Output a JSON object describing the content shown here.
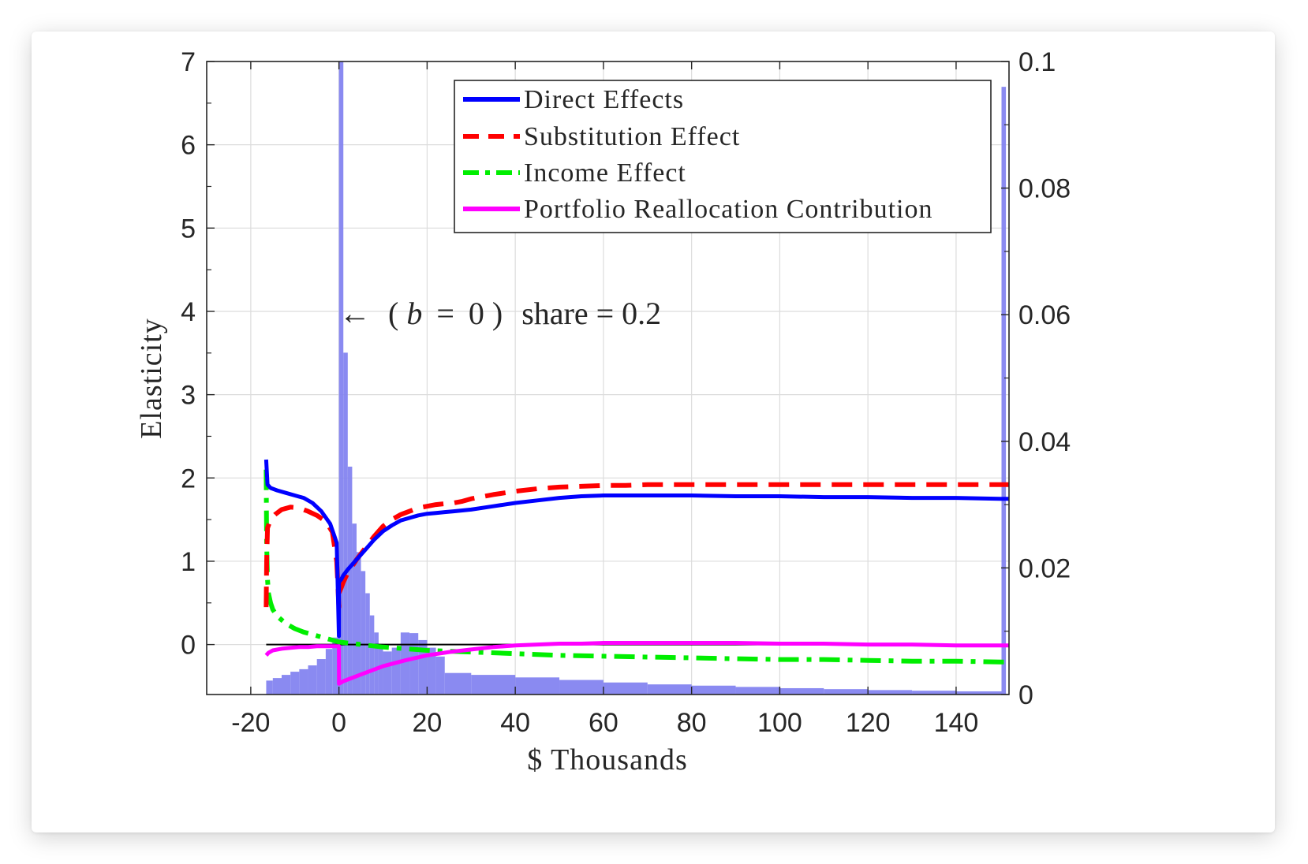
{
  "chart_data": {
    "type": "line",
    "xlabel": "$ Thousands",
    "ylabel": "Elasticity",
    "xlim": [
      -30,
      152
    ],
    "ylim": [
      -0.6,
      7
    ],
    "y2lim": [
      0,
      0.1
    ],
    "xticks": [
      -20,
      0,
      20,
      40,
      60,
      80,
      100,
      120,
      140
    ],
    "xtick_labels": [
      "-20",
      "0",
      "20",
      "40",
      "60",
      "80",
      "100",
      "120",
      "140"
    ],
    "yticks": [
      0,
      1,
      2,
      3,
      4,
      5,
      6,
      7
    ],
    "ytick_labels": [
      "0",
      "1",
      "2",
      "3",
      "4",
      "5",
      "6",
      "7"
    ],
    "y2ticks": [
      0,
      0.02,
      0.04,
      0.06,
      0.08,
      0.1
    ],
    "y2tick_labels": [
      "0",
      "0.02",
      "0.04",
      "0.06",
      "0.08",
      "0.1"
    ],
    "grid": true,
    "legend_position": "top-right",
    "annotation": {
      "arrow": "←",
      "open": "(",
      "var": "b",
      "eq": "=",
      "zero": "0",
      "close": ")",
      "rest": "share = 0.2",
      "x": 0,
      "y": 4
    },
    "zero_line": {
      "x": [
        -16.5,
        152
      ],
      "y": 0
    },
    "histogram": {
      "axis": "right",
      "color": "#8080f0",
      "bins": [
        {
          "x0": -16.5,
          "x1": -15,
          "v": 0.0022
        },
        {
          "x0": -15,
          "x1": -13,
          "v": 0.0026
        },
        {
          "x0": -13,
          "x1": -11,
          "v": 0.0031
        },
        {
          "x0": -11,
          "x1": -9,
          "v": 0.0036
        },
        {
          "x0": -9,
          "x1": -7,
          "v": 0.004
        },
        {
          "x0": -7,
          "x1": -5,
          "v": 0.0046
        },
        {
          "x0": -5,
          "x1": -3,
          "v": 0.0056
        },
        {
          "x0": -3,
          "x1": -1.5,
          "v": 0.0072
        },
        {
          "x0": -1.5,
          "x1": 0,
          "v": 0.009
        },
        {
          "x0": 0,
          "x1": 1,
          "v": 0.12
        },
        {
          "x0": 1,
          "x1": 2,
          "v": 0.054
        },
        {
          "x0": 2,
          "x1": 3,
          "v": 0.036
        },
        {
          "x0": 3,
          "x1": 4,
          "v": 0.027
        },
        {
          "x0": 4,
          "x1": 5,
          "v": 0.0225
        },
        {
          "x0": 5,
          "x1": 6,
          "v": 0.0195
        },
        {
          "x0": 6,
          "x1": 7,
          "v": 0.016
        },
        {
          "x0": 7,
          "x1": 8,
          "v": 0.0125
        },
        {
          "x0": 8,
          "x1": 9,
          "v": 0.0098
        },
        {
          "x0": 9,
          "x1": 10,
          "v": 0.008
        },
        {
          "x0": 10,
          "x1": 12,
          "v": 0.0068
        },
        {
          "x0": 12,
          "x1": 14,
          "v": 0.0074
        },
        {
          "x0": 14,
          "x1": 16,
          "v": 0.0098
        },
        {
          "x0": 16,
          "x1": 18,
          "v": 0.0097
        },
        {
          "x0": 18,
          "x1": 20,
          "v": 0.0086
        },
        {
          "x0": 20,
          "x1": 22,
          "v": 0.0074
        },
        {
          "x0": 22,
          "x1": 24,
          "v": 0.006
        },
        {
          "x0": 24,
          "x1": 30,
          "v": 0.0034
        },
        {
          "x0": 30,
          "x1": 40,
          "v": 0.0031
        },
        {
          "x0": 40,
          "x1": 50,
          "v": 0.0027
        },
        {
          "x0": 50,
          "x1": 60,
          "v": 0.0023
        },
        {
          "x0": 60,
          "x1": 70,
          "v": 0.0019
        },
        {
          "x0": 70,
          "x1": 80,
          "v": 0.0016
        },
        {
          "x0": 80,
          "x1": 90,
          "v": 0.0014
        },
        {
          "x0": 90,
          "x1": 100,
          "v": 0.0012
        },
        {
          "x0": 100,
          "x1": 110,
          "v": 0.001
        },
        {
          "x0": 110,
          "x1": 120,
          "v": 0.00085
        },
        {
          "x0": 120,
          "x1": 130,
          "v": 0.0007
        },
        {
          "x0": 130,
          "x1": 140,
          "v": 0.0006
        },
        {
          "x0": 140,
          "x1": 150.3,
          "v": 0.0005
        },
        {
          "x0": 150.3,
          "x1": 151.3,
          "v": 0.096
        }
      ]
    },
    "series": [
      {
        "name": "Direct Effects",
        "color": "#0000ff",
        "dash": "solid",
        "x": [
          -16.5,
          -16.2,
          -15.5,
          -14,
          -12,
          -10,
          -8,
          -6,
          -4,
          -2,
          -1,
          -0.5,
          0,
          0.01,
          0.5,
          1,
          2,
          4,
          6,
          8,
          10,
          12,
          14,
          16,
          18,
          20,
          22,
          24,
          26,
          28,
          30,
          35,
          40,
          45,
          50,
          55,
          60,
          65,
          70,
          80,
          90,
          100,
          110,
          120,
          130,
          140,
          150,
          152
        ],
        "y": [
          2.22,
          1.92,
          1.88,
          1.85,
          1.82,
          1.79,
          1.76,
          1.7,
          1.6,
          1.45,
          1.3,
          1.22,
          0.1,
          0.75,
          0.78,
          0.83,
          0.9,
          1.02,
          1.14,
          1.26,
          1.36,
          1.43,
          1.49,
          1.52,
          1.55,
          1.57,
          1.58,
          1.59,
          1.6,
          1.61,
          1.62,
          1.66,
          1.7,
          1.73,
          1.76,
          1.78,
          1.79,
          1.79,
          1.79,
          1.79,
          1.78,
          1.78,
          1.77,
          1.77,
          1.76,
          1.76,
          1.75,
          1.75
        ]
      },
      {
        "name": "Substitution Effect",
        "color": "#ff0000",
        "dash": "dashed",
        "x": [
          -16.5,
          -16.4,
          -16.2,
          -15.5,
          -14.5,
          -13,
          -11,
          -9,
          -7,
          -5,
          -3,
          -1.5,
          -0.5,
          0,
          0.01,
          0.5,
          1,
          2,
          4,
          6,
          8,
          10,
          12,
          14,
          16,
          18,
          20,
          22,
          24,
          26,
          28,
          30,
          35,
          40,
          45,
          50,
          55,
          60,
          65,
          70,
          80,
          90,
          100,
          110,
          120,
          130,
          140,
          150,
          152
        ],
        "y": [
          0.45,
          1.0,
          1.4,
          1.5,
          1.56,
          1.62,
          1.65,
          1.64,
          1.6,
          1.55,
          1.48,
          1.35,
          1.0,
          0.45,
          0.62,
          0.68,
          0.75,
          0.86,
          1.02,
          1.16,
          1.3,
          1.42,
          1.5,
          1.56,
          1.6,
          1.64,
          1.66,
          1.68,
          1.69,
          1.7,
          1.72,
          1.75,
          1.8,
          1.84,
          1.87,
          1.89,
          1.9,
          1.91,
          1.91,
          1.92,
          1.92,
          1.92,
          1.92,
          1.92,
          1.92,
          1.92,
          1.92,
          1.92,
          1.92
        ]
      },
      {
        "name": "Income Effect",
        "color": "#00ee00",
        "dash": "dashdot",
        "x": [
          -16.5,
          -16.4,
          -16.2,
          -16.0,
          -15.5,
          -15,
          -14,
          -12,
          -10,
          -8,
          -6,
          -4,
          -2,
          0,
          5,
          10,
          20,
          30,
          40,
          50,
          60,
          70,
          80,
          90,
          100,
          110,
          120,
          130,
          140,
          150,
          152
        ],
        "y": [
          2.1,
          1.2,
          0.78,
          0.62,
          0.5,
          0.42,
          0.34,
          0.25,
          0.19,
          0.15,
          0.12,
          0.09,
          0.06,
          0.03,
          0.0,
          -0.03,
          -0.07,
          -0.09,
          -0.11,
          -0.13,
          -0.14,
          -0.15,
          -0.16,
          -0.17,
          -0.18,
          -0.18,
          -0.19,
          -0.2,
          -0.2,
          -0.21,
          -0.21
        ]
      },
      {
        "name": "Portfolio Reallocation Contribution",
        "color": "#ff00ff",
        "dash": "solid",
        "x": [
          -16.5,
          -16,
          -15,
          -13,
          -11,
          -9,
          -7,
          -5,
          -3,
          -1,
          0,
          0.01,
          1,
          3,
          5,
          8,
          10,
          15,
          20,
          25,
          30,
          35,
          40,
          45,
          50,
          55,
          60,
          65,
          70,
          80,
          90,
          100,
          110,
          120,
          130,
          140,
          150,
          152
        ],
        "y": [
          -0.13,
          -0.1,
          -0.07,
          -0.05,
          -0.04,
          -0.03,
          -0.03,
          -0.02,
          -0.02,
          -0.02,
          -0.02,
          -0.47,
          -0.44,
          -0.4,
          -0.36,
          -0.3,
          -0.26,
          -0.19,
          -0.13,
          -0.09,
          -0.06,
          -0.03,
          -0.01,
          0.0,
          0.01,
          0.01,
          0.02,
          0.02,
          0.02,
          0.02,
          0.02,
          0.01,
          0.01,
          0.0,
          0.0,
          -0.01,
          -0.01,
          -0.01
        ]
      }
    ]
  }
}
